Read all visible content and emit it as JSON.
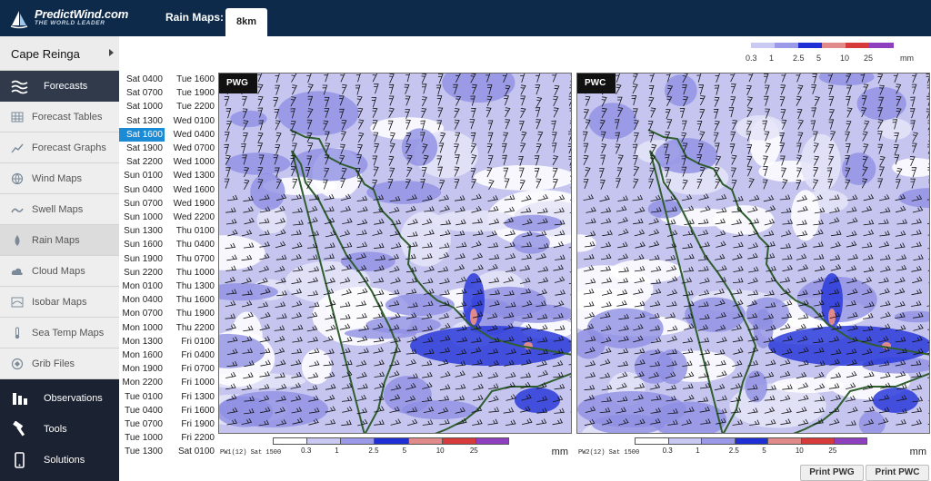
{
  "brand": {
    "name": "PredictWind.com",
    "tagline": "THE WORLD LEADER"
  },
  "topbar": {
    "label": "Rain Maps:",
    "active_tab": "8km"
  },
  "sidebar": {
    "location": "Cape Reinga",
    "items": [
      {
        "label": "Forecasts",
        "icon": "waves-icon",
        "style": "dark",
        "active": true
      },
      {
        "label": "Forecast Tables",
        "icon": "table-icon",
        "style": "light"
      },
      {
        "label": "Forecast Graphs",
        "icon": "graph-icon",
        "style": "light"
      },
      {
        "label": "Wind Maps",
        "icon": "globe-icon",
        "style": "light"
      },
      {
        "label": "Swell Maps",
        "icon": "swell-icon",
        "style": "light"
      },
      {
        "label": "Rain Maps",
        "icon": "raindrop-icon",
        "style": "light",
        "active": true
      },
      {
        "label": "Cloud Maps",
        "icon": "cloud-icon",
        "style": "light"
      },
      {
        "label": "Isobar Maps",
        "icon": "isobar-icon",
        "style": "light"
      },
      {
        "label": "Sea Temp Maps",
        "icon": "thermometer-icon",
        "style": "light"
      },
      {
        "label": "Grib Files",
        "icon": "grib-icon",
        "style": "light"
      },
      {
        "label": "Observations",
        "icon": "observations-icon",
        "style": "dark"
      },
      {
        "label": "Tools",
        "icon": "hammer-icon",
        "style": "dark"
      },
      {
        "label": "Solutions",
        "icon": "phone-icon",
        "style": "dark"
      }
    ]
  },
  "times": {
    "col1": [
      "Sat 0400",
      "Sat 0700",
      "Sat 1000",
      "Sat 1300",
      "Sat 1600",
      "Sat 1900",
      "Sat 2200",
      "Sun 0100",
      "Sun 0400",
      "Sun 0700",
      "Sun 1000",
      "Sun 1300",
      "Sun 1600",
      "Sun 1900",
      "Sun 2200",
      "Mon 0100",
      "Mon 0400",
      "Mon 0700",
      "Mon 1000",
      "Mon 1300",
      "Mon 1600",
      "Mon 1900",
      "Mon 2200",
      "Tue 0100",
      "Tue 0400",
      "Tue 0700",
      "Tue 1000",
      "Tue 1300"
    ],
    "col2": [
      "Tue 1600",
      "Tue 1900",
      "Tue 2200",
      "Wed 0100",
      "Wed 0400",
      "Wed 0700",
      "Wed 1000",
      "Wed 1300",
      "Wed 1600",
      "Wed 1900",
      "Wed 2200",
      "Thu 0100",
      "Thu 0400",
      "Thu 0700",
      "Thu 1000",
      "Thu 1300",
      "Thu 1600",
      "Thu 1900",
      "Thu 2200",
      "Fri 0100",
      "Fri 0400",
      "Fri 0700",
      "Fri 1000",
      "Fri 1300",
      "Fri 1600",
      "Fri 1900",
      "Fri 2200",
      "Sat 0100"
    ],
    "selected": "Sat 1600"
  },
  "legend": {
    "labels": [
      "0.3",
      "1",
      "2.5",
      "5",
      "10",
      "25"
    ],
    "unit": "mm",
    "colors": [
      "#ffffff",
      "#c9c9f2",
      "#9a9ae8",
      "#1f2fd6",
      "#e08a8a",
      "#d73a3a",
      "#8e3fbf"
    ]
  },
  "maps": [
    {
      "tag": "PWG",
      "footer": "PW1(12) Sat 1500"
    },
    {
      "tag": "PWC",
      "footer": "PW2(12) Sat 1500"
    }
  ],
  "buttons": {
    "print_pwg": "Print PWG",
    "print_pwc": "Print PWC"
  },
  "colors": {
    "accent": "#1c8bd6",
    "header": "#0d2a4a",
    "sidebar": "#1b2232",
    "land_outline": "#2f5e2f"
  }
}
